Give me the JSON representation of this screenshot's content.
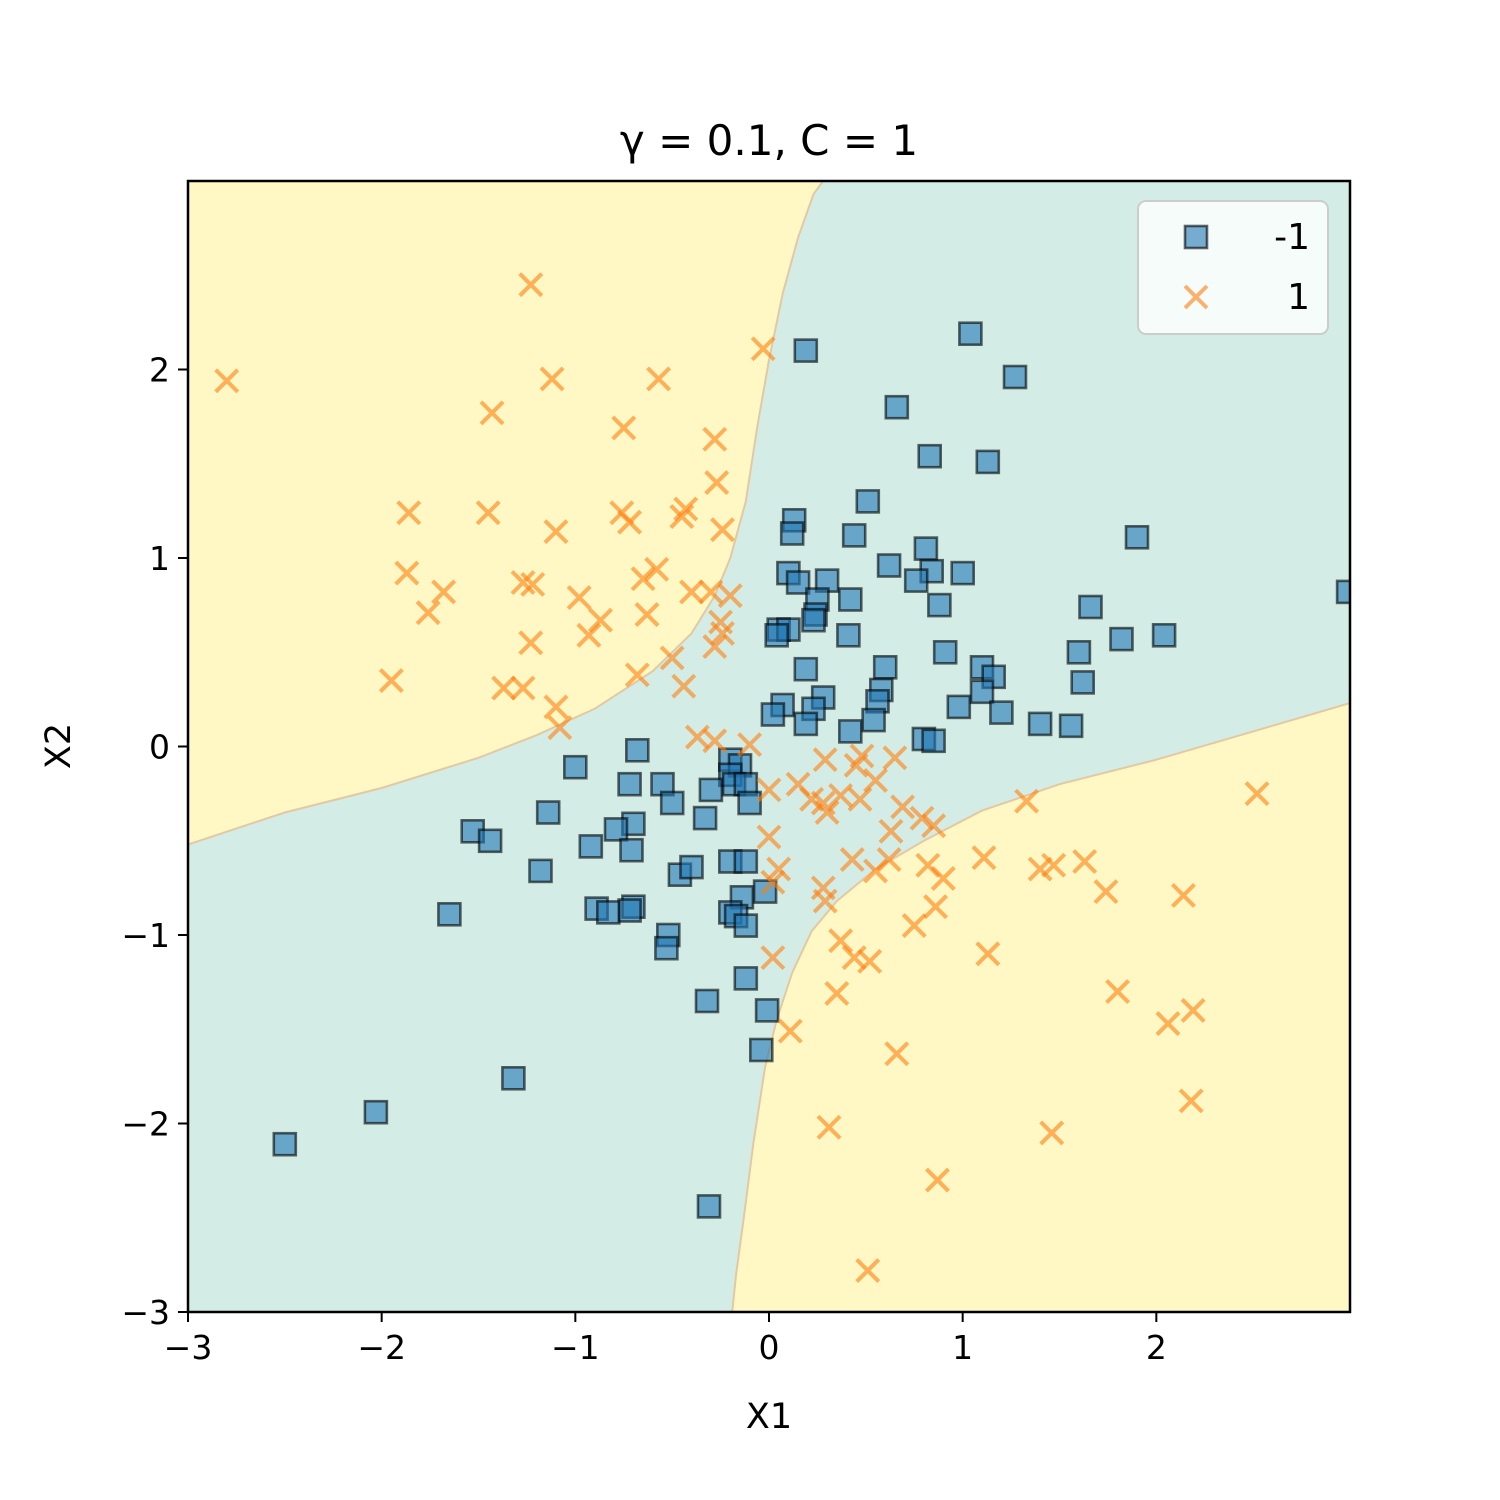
{
  "chart_data": {
    "type": "scatter",
    "title": "γ = 0.1, C = 1",
    "xlabel": "X1",
    "ylabel": "X2",
    "xlim": [
      -3,
      3
    ],
    "ylim": [
      -3,
      3
    ],
    "xticks": [
      -3,
      -2,
      -1,
      0,
      1,
      2
    ],
    "yticks": [
      -3,
      -2,
      -1,
      0,
      1,
      2
    ],
    "xtick_labels": [
      "−3",
      "−2",
      "−1",
      "0",
      "1",
      "2"
    ],
    "ytick_labels": [
      "−3",
      "−2",
      "−1",
      "0",
      "1",
      "2"
    ],
    "grid": false,
    "legend_position": "top-right",
    "decision_regions": [
      {
        "class": "1",
        "color": "#fff7c4",
        "location": "top-left and bottom-right quadrants"
      },
      {
        "class": "-1",
        "color": "#d3ede6",
        "location": "diagonal band through the origin"
      }
    ],
    "series": [
      {
        "name": "-1",
        "marker": "square",
        "color": "#1f77b4",
        "points": [
          [
            0.19,
            2.1
          ],
          [
            1.04,
            2.19
          ],
          [
            1.27,
            1.96
          ],
          [
            0.66,
            1.8
          ],
          [
            0.83,
            1.54
          ],
          [
            1.13,
            1.51
          ],
          [
            0.51,
            1.3
          ],
          [
            0.13,
            1.2
          ],
          [
            0.12,
            1.13
          ],
          [
            0.44,
            1.12
          ],
          [
            1.9,
            1.11
          ],
          [
            0.81,
            1.05
          ],
          [
            0.84,
            0.93
          ],
          [
            1.0,
            0.92
          ],
          [
            0.62,
            0.96
          ],
          [
            0.1,
            0.92
          ],
          [
            0.15,
            0.87
          ],
          [
            0.3,
            0.88
          ],
          [
            0.76,
            0.88
          ],
          [
            0.25,
            0.78
          ],
          [
            0.42,
            0.78
          ],
          [
            0.88,
            0.75
          ],
          [
            1.66,
            0.74
          ],
          [
            0.24,
            0.7
          ],
          [
            0.23,
            0.67
          ],
          [
            0.05,
            0.62
          ],
          [
            0.1,
            0.62
          ],
          [
            0.04,
            0.59
          ],
          [
            0.41,
            0.59
          ],
          [
            1.82,
            0.57
          ],
          [
            2.04,
            0.59
          ],
          [
            0.91,
            0.5
          ],
          [
            1.6,
            0.5
          ],
          [
            0.19,
            0.41
          ],
          [
            0.6,
            0.42
          ],
          [
            1.1,
            0.42
          ],
          [
            1.16,
            0.37
          ],
          [
            1.62,
            0.34
          ],
          [
            0.58,
            0.3
          ],
          [
            1.1,
            0.29
          ],
          [
            0.28,
            0.26
          ],
          [
            0.56,
            0.24
          ],
          [
            0.07,
            0.22
          ],
          [
            0.23,
            0.2
          ],
          [
            0.98,
            0.21
          ],
          [
            0.02,
            0.17
          ],
          [
            1.2,
            0.18
          ],
          [
            0.54,
            0.14
          ],
          [
            1.4,
            0.12
          ],
          [
            1.56,
            0.11
          ],
          [
            0.19,
            0.12
          ],
          [
            0.42,
            0.08
          ],
          [
            0.8,
            0.04
          ],
          [
            0.85,
            0.03
          ],
          [
            -0.68,
            -0.02
          ],
          [
            -1.0,
            -0.11
          ],
          [
            -0.2,
            -0.07
          ],
          [
            -0.15,
            -0.1
          ],
          [
            -0.2,
            -0.15
          ],
          [
            -0.72,
            -0.2
          ],
          [
            -0.55,
            -0.2
          ],
          [
            -0.3,
            -0.23
          ],
          [
            -0.18,
            -0.2
          ],
          [
            -0.12,
            -0.2
          ],
          [
            -0.5,
            -0.3
          ],
          [
            -0.1,
            -0.3
          ],
          [
            -1.14,
            -0.35
          ],
          [
            -0.33,
            -0.38
          ],
          [
            -0.7,
            -0.41
          ],
          [
            -0.79,
            -0.44
          ],
          [
            -1.53,
            -0.45
          ],
          [
            -1.44,
            -0.5
          ],
          [
            -0.71,
            -0.55
          ],
          [
            -0.92,
            -0.53
          ],
          [
            -0.2,
            -0.61
          ],
          [
            -0.12,
            -0.61
          ],
          [
            -0.46,
            -0.68
          ],
          [
            -0.4,
            -0.64
          ],
          [
            -1.18,
            -0.66
          ],
          [
            -0.02,
            -0.77
          ],
          [
            -0.14,
            -0.8
          ],
          [
            -0.7,
            -0.85
          ],
          [
            -0.72,
            -0.87
          ],
          [
            -0.89,
            -0.86
          ],
          [
            -0.83,
            -0.88
          ],
          [
            -0.2,
            -0.88
          ],
          [
            -1.65,
            -0.89
          ],
          [
            -0.17,
            -0.9
          ],
          [
            -0.12,
            -0.95
          ],
          [
            -0.52,
            -1.0
          ],
          [
            -0.53,
            -1.07
          ],
          [
            -0.12,
            -1.23
          ],
          [
            -0.32,
            -1.35
          ],
          [
            -0.01,
            -1.4
          ],
          [
            -0.04,
            -1.61
          ],
          [
            -1.32,
            -1.76
          ],
          [
            -2.03,
            -1.94
          ],
          [
            -2.5,
            -2.11
          ],
          [
            -0.31,
            -2.44
          ],
          [
            2.99,
            0.82
          ]
        ]
      },
      {
        "name": "1",
        "marker": "x",
        "color": "#ff7f0e",
        "points": [
          [
            -1.23,
            2.45
          ],
          [
            -2.8,
            1.94
          ],
          [
            -1.12,
            1.95
          ],
          [
            -0.57,
            1.95
          ],
          [
            -0.03,
            2.11
          ],
          [
            -1.43,
            1.77
          ],
          [
            -0.75,
            1.69
          ],
          [
            -0.28,
            1.63
          ],
          [
            -0.27,
            1.4
          ],
          [
            -1.86,
            1.24
          ],
          [
            -1.45,
            1.24
          ],
          [
            -0.43,
            1.26
          ],
          [
            -0.76,
            1.24
          ],
          [
            -0.72,
            1.19
          ],
          [
            -0.45,
            1.22
          ],
          [
            -1.1,
            1.14
          ],
          [
            -0.24,
            1.15
          ],
          [
            -1.87,
            0.92
          ],
          [
            -0.65,
            0.89
          ],
          [
            -0.58,
            0.94
          ],
          [
            -1.27,
            0.87
          ],
          [
            -1.22,
            0.86
          ],
          [
            -1.68,
            0.82
          ],
          [
            -0.4,
            0.82
          ],
          [
            -0.3,
            0.82
          ],
          [
            -0.2,
            0.8
          ],
          [
            -0.98,
            0.79
          ],
          [
            -1.76,
            0.71
          ],
          [
            -0.63,
            0.7
          ],
          [
            -0.87,
            0.67
          ],
          [
            -0.25,
            0.66
          ],
          [
            -0.93,
            0.59
          ],
          [
            -1.23,
            0.55
          ],
          [
            -0.24,
            0.6
          ],
          [
            -0.28,
            0.53
          ],
          [
            -0.5,
            0.47
          ],
          [
            -0.68,
            0.38
          ],
          [
            -1.95,
            0.35
          ],
          [
            -1.37,
            0.31
          ],
          [
            -1.27,
            0.31
          ],
          [
            -0.44,
            0.32
          ],
          [
            -1.1,
            0.21
          ],
          [
            -1.08,
            0.1
          ],
          [
            -0.37,
            0.05
          ],
          [
            -0.28,
            0.03
          ],
          [
            -0.1,
            0.01
          ],
          [
            0.29,
            -0.07
          ],
          [
            0.48,
            -0.05
          ],
          [
            0.65,
            -0.06
          ],
          [
            0.45,
            -0.1
          ],
          [
            0.0,
            -0.23
          ],
          [
            0.15,
            -0.2
          ],
          [
            0.55,
            -0.18
          ],
          [
            0.37,
            -0.26
          ],
          [
            0.47,
            -0.28
          ],
          [
            0.28,
            -0.3
          ],
          [
            0.3,
            -0.35
          ],
          [
            0.22,
            -0.28
          ],
          [
            0.69,
            -0.32
          ],
          [
            0.79,
            -0.38
          ],
          [
            0.85,
            -0.42
          ],
          [
            1.33,
            -0.29
          ],
          [
            2.52,
            -0.25
          ],
          [
            0.63,
            -0.45
          ],
          [
            0.0,
            -0.48
          ],
          [
            0.43,
            -0.6
          ],
          [
            0.62,
            -0.6
          ],
          [
            0.82,
            -0.63
          ],
          [
            1.11,
            -0.59
          ],
          [
            1.4,
            -0.65
          ],
          [
            1.47,
            -0.63
          ],
          [
            1.63,
            -0.61
          ],
          [
            0.55,
            -0.66
          ],
          [
            0.05,
            -0.65
          ],
          [
            0.02,
            -0.72
          ],
          [
            0.9,
            -0.7
          ],
          [
            0.28,
            -0.75
          ],
          [
            1.74,
            -0.77
          ],
          [
            2.14,
            -0.79
          ],
          [
            0.29,
            -0.82
          ],
          [
            0.86,
            -0.85
          ],
          [
            0.75,
            -0.95
          ],
          [
            0.37,
            -1.03
          ],
          [
            0.44,
            -1.12
          ],
          [
            0.52,
            -1.14
          ],
          [
            1.13,
            -1.1
          ],
          [
            0.02,
            -1.12
          ],
          [
            0.35,
            -1.31
          ],
          [
            1.8,
            -1.3
          ],
          [
            2.06,
            -1.47
          ],
          [
            2.19,
            -1.4
          ],
          [
            0.11,
            -1.51
          ],
          [
            0.66,
            -1.63
          ],
          [
            2.18,
            -1.88
          ],
          [
            0.31,
            -2.02
          ],
          [
            1.46,
            -2.05
          ],
          [
            0.87,
            -2.3
          ],
          [
            0.51,
            -2.78
          ]
        ]
      }
    ]
  }
}
